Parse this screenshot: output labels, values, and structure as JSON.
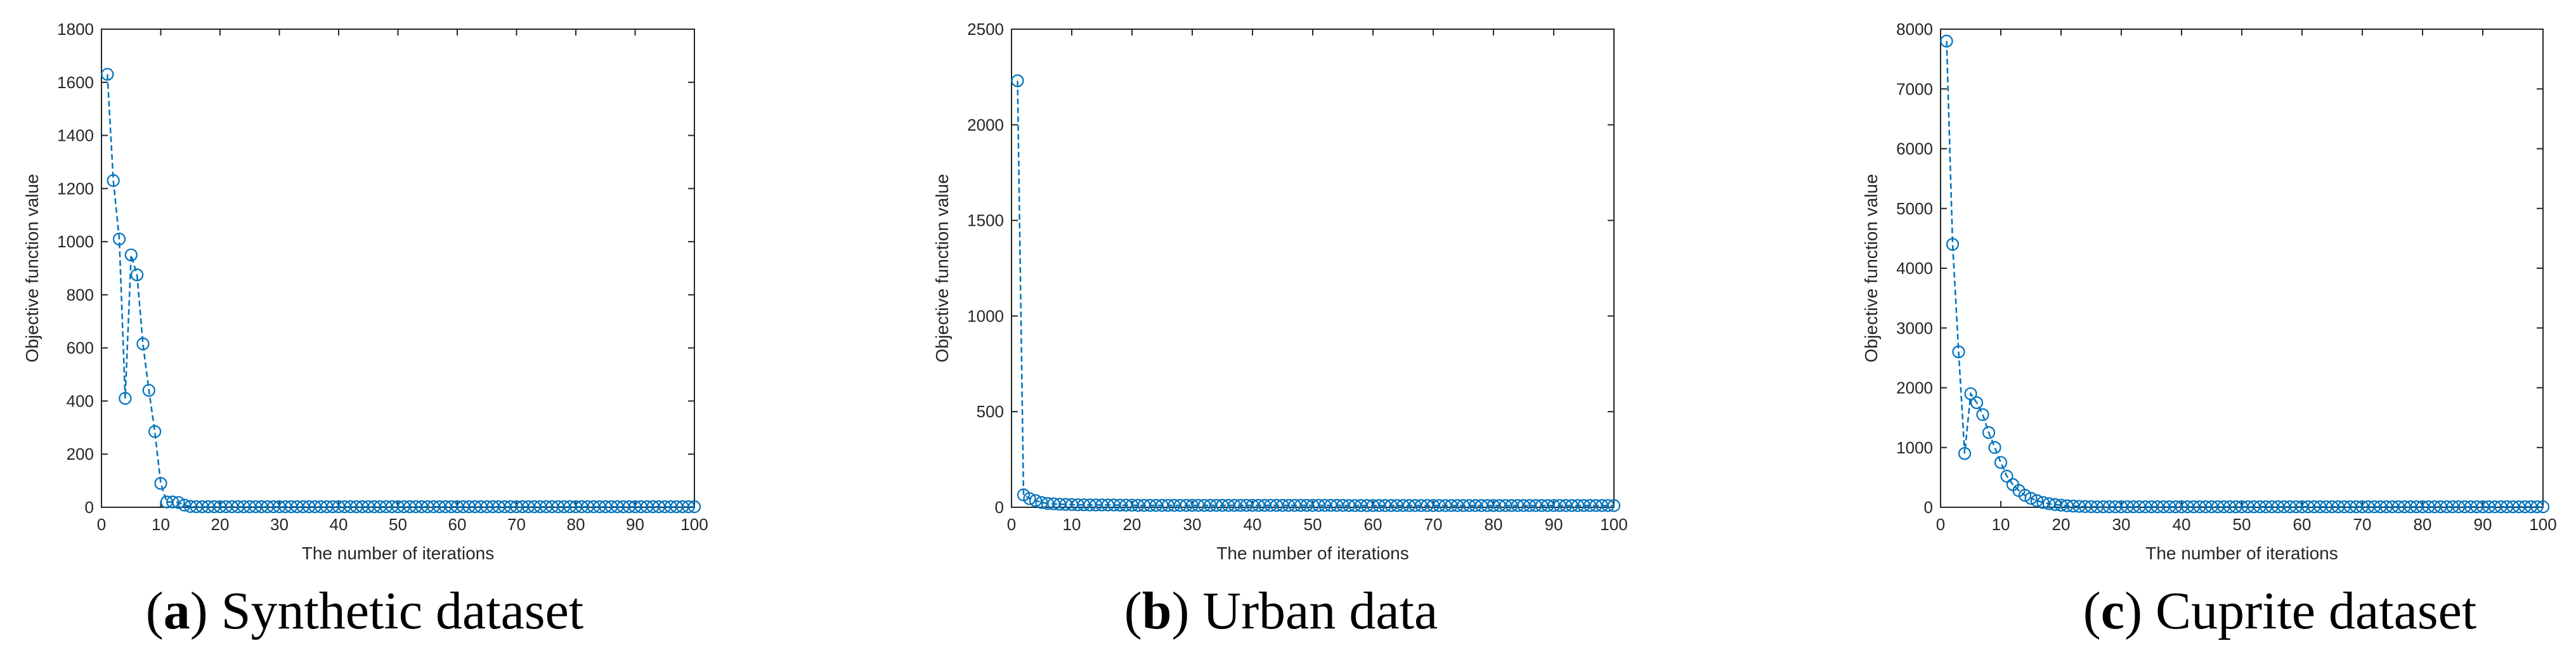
{
  "chart_data": [
    {
      "type": "line",
      "caption": {
        "open": "(",
        "tag": "a",
        "rest": ") Synthetic dataset"
      },
      "xlabel": "The number of iterations",
      "ylabel": "Objective function value",
      "xlim": [
        0,
        100
      ],
      "ylim": [
        0,
        1800
      ],
      "xticks": [
        0,
        10,
        20,
        30,
        40,
        50,
        60,
        70,
        80,
        90,
        100
      ],
      "yticks": [
        0,
        200,
        400,
        600,
        800,
        1000,
        1200,
        1400,
        1600,
        1800
      ],
      "x": [
        1,
        2,
        3,
        4,
        5,
        6,
        7,
        8,
        9,
        10,
        11,
        12,
        13,
        14,
        15,
        16,
        17,
        18,
        19,
        20,
        21,
        22,
        23,
        24,
        25,
        26,
        27,
        28,
        29,
        30,
        31,
        32,
        33,
        34,
        35,
        36,
        37,
        38,
        39,
        40,
        41,
        42,
        43,
        44,
        45,
        46,
        47,
        48,
        49,
        50,
        51,
        52,
        53,
        54,
        55,
        56,
        57,
        58,
        59,
        60,
        61,
        62,
        63,
        64,
        65,
        66,
        67,
        68,
        69,
        70,
        71,
        72,
        73,
        74,
        75,
        76,
        77,
        78,
        79,
        80,
        81,
        82,
        83,
        84,
        85,
        86,
        87,
        88,
        89,
        90,
        91,
        92,
        93,
        94,
        95,
        96,
        97,
        98,
        99,
        100
      ],
      "y": [
        1630,
        1230,
        1010,
        410,
        950,
        875,
        615,
        440,
        285,
        90,
        20,
        20,
        18,
        8,
        3,
        2,
        2,
        2,
        2,
        2,
        2,
        2,
        2,
        2,
        2,
        2,
        2,
        2,
        2,
        2,
        2,
        2,
        2,
        2,
        2,
        2,
        2,
        2,
        2,
        2,
        2,
        2,
        2,
        2,
        2,
        2,
        2,
        2,
        2,
        2,
        2,
        2,
        2,
        2,
        2,
        2,
        2,
        2,
        2,
        2,
        2,
        2,
        2,
        2,
        2,
        2,
        2,
        2,
        2,
        2,
        2,
        2,
        2,
        2,
        2,
        2,
        2,
        2,
        2,
        2,
        2,
        2,
        2,
        2,
        2,
        2,
        2,
        2,
        2,
        2,
        2,
        2,
        2,
        2,
        2,
        2,
        2,
        2,
        2,
        2
      ]
    },
    {
      "type": "line",
      "caption": {
        "open": "(",
        "tag": "b",
        "rest": ") Urban data"
      },
      "xlabel": "The number of iterations",
      "ylabel": "Objective function value",
      "xlim": [
        0,
        100
      ],
      "ylim": [
        0,
        2500
      ],
      "xticks": [
        0,
        10,
        20,
        30,
        40,
        50,
        60,
        70,
        80,
        90,
        100
      ],
      "yticks": [
        0,
        500,
        1000,
        1500,
        2000,
        2500
      ],
      "x": [
        1,
        2,
        3,
        4,
        5,
        6,
        7,
        8,
        9,
        10,
        11,
        12,
        13,
        14,
        15,
        16,
        17,
        18,
        19,
        20,
        21,
        22,
        23,
        24,
        25,
        26,
        27,
        28,
        29,
        30,
        31,
        32,
        33,
        34,
        35,
        36,
        37,
        38,
        39,
        40,
        41,
        42,
        43,
        44,
        45,
        46,
        47,
        48,
        49,
        50,
        51,
        52,
        53,
        54,
        55,
        56,
        57,
        58,
        59,
        60,
        61,
        62,
        63,
        64,
        65,
        66,
        67,
        68,
        69,
        70,
        71,
        72,
        73,
        74,
        75,
        76,
        77,
        78,
        79,
        80,
        81,
        82,
        83,
        84,
        85,
        86,
        87,
        88,
        89,
        90,
        91,
        92,
        93,
        94,
        95,
        96,
        97,
        98,
        99,
        100
      ],
      "y": [
        2230,
        65,
        45,
        35,
        25,
        20,
        18,
        16,
        15,
        14,
        13,
        13,
        12,
        12,
        12,
        12,
        12,
        11,
        11,
        11,
        10,
        10,
        10,
        10,
        10,
        10,
        10,
        10,
        10,
        10,
        10,
        10,
        10,
        10,
        10,
        10,
        10,
        10,
        10,
        10,
        10,
        10,
        10,
        10,
        10,
        10,
        10,
        10,
        10,
        10,
        10,
        10,
        10,
        10,
        10,
        9,
        9,
        9,
        9,
        9,
        9,
        9,
        9,
        9,
        9,
        9,
        9,
        9,
        9,
        9,
        9,
        9,
        9,
        9,
        9,
        9,
        9,
        9,
        9,
        9,
        9,
        9,
        9,
        9,
        9,
        9,
        9,
        9,
        9,
        9,
        9,
        9,
        9,
        9,
        9,
        9,
        9,
        9,
        9,
        9
      ]
    },
    {
      "type": "line",
      "caption": {
        "open": "(",
        "tag": "c",
        "rest": ") Cuprite dataset"
      },
      "xlabel": "The number of iterations",
      "ylabel": "Objective function value",
      "xlim": [
        0,
        100
      ],
      "ylim": [
        0,
        8000
      ],
      "xticks": [
        0,
        10,
        20,
        30,
        40,
        50,
        60,
        70,
        80,
        90,
        100
      ],
      "yticks": [
        0,
        1000,
        2000,
        3000,
        4000,
        5000,
        6000,
        7000,
        8000
      ],
      "x": [
        1,
        2,
        3,
        4,
        5,
        6,
        7,
        8,
        9,
        10,
        11,
        12,
        13,
        14,
        15,
        16,
        17,
        18,
        19,
        20,
        21,
        22,
        23,
        24,
        25,
        26,
        27,
        28,
        29,
        30,
        31,
        32,
        33,
        34,
        35,
        36,
        37,
        38,
        39,
        40,
        41,
        42,
        43,
        44,
        45,
        46,
        47,
        48,
        49,
        50,
        51,
        52,
        53,
        54,
        55,
        56,
        57,
        58,
        59,
        60,
        61,
        62,
        63,
        64,
        65,
        66,
        67,
        68,
        69,
        70,
        71,
        72,
        73,
        74,
        75,
        76,
        77,
        78,
        79,
        80,
        81,
        82,
        83,
        84,
        85,
        86,
        87,
        88,
        89,
        90,
        91,
        92,
        93,
        94,
        95,
        96,
        97,
        98,
        99,
        100
      ],
      "y": [
        7800,
        4400,
        2600,
        900,
        1900,
        1750,
        1550,
        1250,
        1000,
        750,
        520,
        380,
        280,
        200,
        150,
        110,
        80,
        60,
        45,
        35,
        25,
        20,
        15,
        12,
        10,
        8,
        8,
        8,
        8,
        8,
        8,
        8,
        8,
        8,
        8,
        8,
        8,
        8,
        8,
        8,
        8,
        8,
        8,
        8,
        8,
        8,
        8,
        8,
        8,
        8,
        8,
        8,
        8,
        8,
        8,
        8,
        8,
        8,
        8,
        8,
        8,
        8,
        8,
        8,
        8,
        8,
        8,
        8,
        8,
        8,
        8,
        8,
        8,
        8,
        8,
        8,
        8,
        8,
        8,
        8,
        8,
        8,
        8,
        8,
        8,
        8,
        8,
        8,
        8,
        8,
        8,
        8,
        8,
        8,
        8,
        8,
        8,
        8,
        8,
        8
      ]
    }
  ],
  "style": {
    "series_color": "#0072BD",
    "axis_color": "#262626"
  }
}
